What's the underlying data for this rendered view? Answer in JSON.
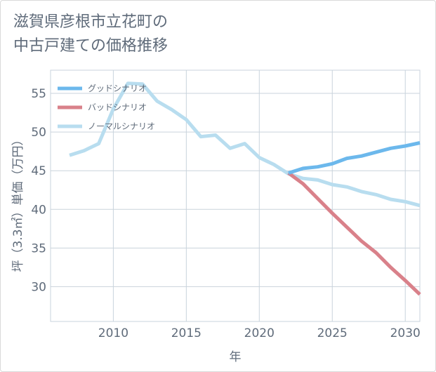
{
  "title_lines": [
    "滋賀県彦根市立花町の",
    "中古戸建ての価格推移"
  ],
  "chart_data": {
    "type": "line",
    "xlabel": "年",
    "ylabel": "坪（3.3㎡）単価（万円）",
    "xlim": [
      2005.7,
      2031.0
    ],
    "ylim": [
      25.5,
      58.0
    ],
    "x_ticks": [
      2010,
      2015,
      2020,
      2025,
      2030
    ],
    "y_ticks": [
      30,
      35,
      40,
      45,
      50,
      55
    ],
    "grid": true,
    "legend_position": "top-left",
    "series": [
      {
        "name": "グッドシナリオ",
        "color": "#6cb8ec",
        "x": [
          2022,
          2023,
          2024,
          2025,
          2026,
          2027,
          2028,
          2029,
          2030,
          2031
        ],
        "y": [
          44.7,
          45.3,
          45.5,
          45.9,
          46.6,
          46.9,
          47.4,
          47.9,
          48.2,
          48.6
        ]
      },
      {
        "name": "バッドシナリオ",
        "color": "#d9818a",
        "x": [
          2022,
          2023,
          2024,
          2025,
          2026,
          2027,
          2028,
          2029,
          2030,
          2031
        ],
        "y": [
          44.7,
          43.3,
          41.4,
          39.5,
          37.7,
          35.9,
          34.4,
          32.5,
          30.8,
          29.0
        ]
      },
      {
        "name": "ノーマルシナリオ",
        "color": "#b8ddef",
        "x": [
          2007,
          2008,
          2009,
          2010,
          2011,
          2012,
          2013,
          2014,
          2015,
          2016,
          2017,
          2018,
          2019,
          2020,
          2021,
          2022,
          2023,
          2024,
          2025,
          2026,
          2027,
          2028,
          2029,
          2030,
          2031
        ],
        "y": [
          47.0,
          47.6,
          48.5,
          53.0,
          56.3,
          56.2,
          54.0,
          52.9,
          51.6,
          49.4,
          49.6,
          47.9,
          48.5,
          46.7,
          45.8,
          44.6,
          44.0,
          43.8,
          43.2,
          42.9,
          42.3,
          41.9,
          41.3,
          41.0,
          40.5
        ]
      }
    ]
  }
}
